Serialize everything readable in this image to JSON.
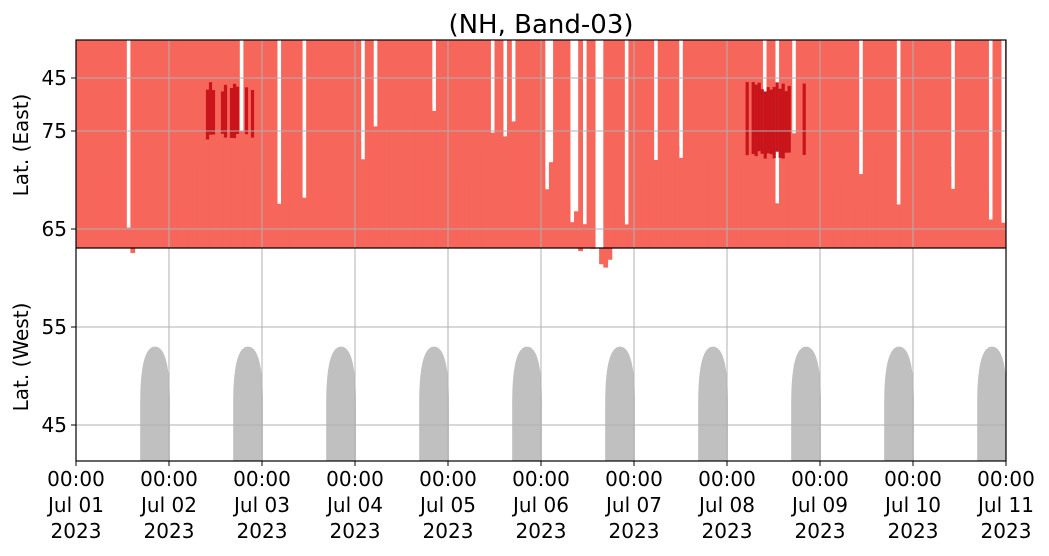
{
  "chart_data": {
    "type": "heatmap",
    "title": "(NH, Band-03)",
    "panels": [
      {
        "name": "east",
        "ylabel": "Lat. (East)",
        "yticks": [
          45,
          55,
          65,
          75
        ],
        "ylim": [
          39,
          80
        ]
      },
      {
        "name": "west",
        "ylabel": "Lat. (West)",
        "yticks": [
          75,
          65,
          55,
          45
        ],
        "ylim": [
          80,
          39
        ]
      }
    ],
    "x_ticks": [
      {
        "time": "00:00",
        "date": "Jul 01",
        "year": "2023"
      },
      {
        "time": "00:00",
        "date": "Jul 02",
        "year": "2023"
      },
      {
        "time": "00:00",
        "date": "Jul 03",
        "year": "2023"
      },
      {
        "time": "00:00",
        "date": "Jul 04",
        "year": "2023"
      },
      {
        "time": "00:00",
        "date": "Jul 05",
        "year": "2023"
      },
      {
        "time": "00:00",
        "date": "Jul 06",
        "year": "2023"
      },
      {
        "time": "00:00",
        "date": "Jul 07",
        "year": "2023"
      },
      {
        "time": "00:00",
        "date": "Jul 08",
        "year": "2023"
      },
      {
        "time": "00:00",
        "date": "Jul 09",
        "year": "2023"
      },
      {
        "time": "00:00",
        "date": "Jul 10",
        "year": "2023"
      },
      {
        "time": "00:00",
        "date": "Jul 11",
        "year": "2023"
      }
    ],
    "xlim": [
      "2023-07-01 00:00",
      "2023-07-11 00:00"
    ],
    "grid": true,
    "colors": {
      "light": "#f7665a",
      "dark": "#c8141a",
      "sun": "#c0c0c0",
      "grid": "#b0b0b0"
    },
    "activity_profile": {
      "x_day": [
        0.0,
        0.3,
        0.6,
        0.9,
        1.2,
        1.5,
        1.8,
        2.1,
        2.4,
        2.7,
        3.0,
        3.3,
        3.6,
        3.9,
        4.2,
        4.5,
        4.8,
        5.1,
        5.4,
        5.7,
        6.0,
        6.3,
        6.6,
        6.9,
        7.2,
        7.5,
        7.8,
        8.1,
        8.4,
        8.7,
        9.0,
        9.3,
        9.6,
        9.9
      ],
      "east_lat_min": [
        72,
        76,
        75,
        62,
        67,
        77,
        76,
        68,
        72,
        69,
        72,
        76,
        76,
        74,
        71,
        67,
        66,
        67,
        70,
        72,
        71,
        67,
        64,
        68,
        70,
        71,
        68,
        67,
        61,
        67,
        68,
        70,
        68,
        71
      ],
      "west_lat_min": [
        73,
        68,
        63,
        68,
        66,
        76,
        74,
        70,
        69,
        66,
        73,
        76,
        76,
        74,
        73,
        75,
        76,
        70,
        63,
        62,
        69,
        70,
        72,
        70,
        72,
        70,
        73,
        68,
        70,
        72,
        67,
        69,
        70,
        67
      ],
      "dark_core": [
        {
          "panel": "east",
          "x_day": [
            2.3,
            2.7
          ],
          "lat": [
            70,
            80
          ]
        },
        {
          "panel": "east",
          "x_day": [
            4.6,
            5.4
          ],
          "lat": [
            66,
            74
          ]
        },
        {
          "panel": "east",
          "x_day": [
            6.0,
            6.8
          ],
          "lat": [
            72,
            80
          ]
        },
        {
          "panel": "east",
          "x_day": [
            8.3,
            9.2
          ],
          "lat": [
            68,
            80
          ]
        },
        {
          "panel": "east",
          "x_day": [
            9.6,
            9.9
          ],
          "lat": [
            70,
            80
          ]
        },
        {
          "panel": "west",
          "x_day": [
            1.3,
            1.9
          ],
          "lat": [
            74,
            80
          ]
        },
        {
          "panel": "west",
          "x_day": [
            7.2,
            7.9
          ],
          "lat": [
            72,
            80
          ]
        }
      ]
    },
    "sun_lobes": [
      {
        "panel": "east",
        "x_day_center": 0.45,
        "width_day": 0.3,
        "lat_min": 53
      },
      {
        "panel": "east",
        "x_day_center": 1.45,
        "width_day": 0.3,
        "lat_min": 53
      },
      {
        "panel": "east",
        "x_day_center": 2.45,
        "width_day": 0.3,
        "lat_min": 53
      },
      {
        "panel": "east",
        "x_day_center": 3.45,
        "width_day": 0.3,
        "lat_min": 53
      },
      {
        "panel": "east",
        "x_day_center": 4.45,
        "width_day": 0.3,
        "lat_min": 53
      },
      {
        "panel": "east",
        "x_day_center": 5.45,
        "width_day": 0.3,
        "lat_min": 53
      },
      {
        "panel": "east",
        "x_day_center": 6.45,
        "width_day": 0.3,
        "lat_min": 53
      },
      {
        "panel": "east",
        "x_day_center": 7.45,
        "width_day": 0.3,
        "lat_min": 53
      },
      {
        "panel": "east",
        "x_day_center": 8.45,
        "width_day": 0.3,
        "lat_min": 53
      },
      {
        "panel": "east",
        "x_day_center": 9.45,
        "width_day": 0.3,
        "lat_min": 53
      },
      {
        "panel": "west",
        "x_day_center": 0.85,
        "width_day": 0.32,
        "lat_min": 53
      },
      {
        "panel": "west",
        "x_day_center": 1.85,
        "width_day": 0.32,
        "lat_min": 53
      },
      {
        "panel": "west",
        "x_day_center": 2.85,
        "width_day": 0.32,
        "lat_min": 53
      },
      {
        "panel": "west",
        "x_day_center": 3.85,
        "width_day": 0.32,
        "lat_min": 53
      },
      {
        "panel": "west",
        "x_day_center": 4.85,
        "width_day": 0.32,
        "lat_min": 53
      },
      {
        "panel": "west",
        "x_day_center": 5.85,
        "width_day": 0.32,
        "lat_min": 53
      },
      {
        "panel": "west",
        "x_day_center": 6.85,
        "width_day": 0.32,
        "lat_min": 53
      },
      {
        "panel": "west",
        "x_day_center": 7.85,
        "width_day": 0.32,
        "lat_min": 53
      },
      {
        "panel": "west",
        "x_day_center": 8.85,
        "width_day": 0.32,
        "lat_min": 53
      },
      {
        "panel": "west",
        "x_day_center": 9.85,
        "width_day": 0.32,
        "lat_min": 53
      }
    ]
  }
}
